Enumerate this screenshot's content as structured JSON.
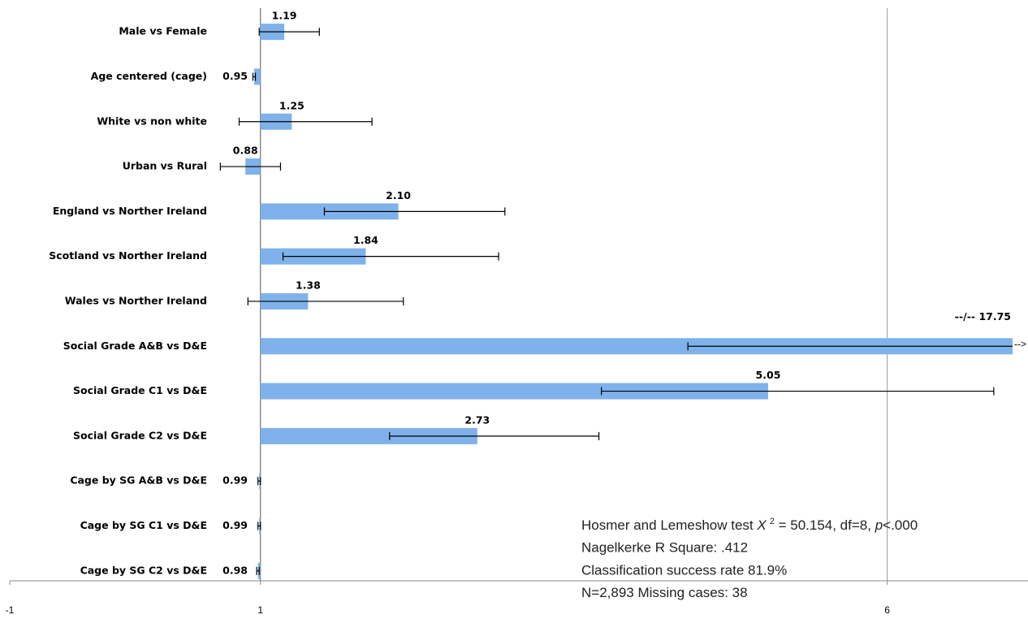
{
  "chart_data": {
    "type": "bar",
    "orientation": "horizontal",
    "categories": [
      "Male vs Female",
      "Age centered (cage)",
      "White vs non white",
      "Urban vs Rural",
      "England vs Norther Ireland",
      "Scotland vs Norther Ireland",
      "Wales vs Norther Ireland",
      "Social Grade A&B vs D&E",
      "Social Grade C1 vs D&E",
      "Social Grade C2 vs D&E",
      "Cage by SG A&B vs D&E",
      "Cage by SG C1 vs D&E",
      "Cage by SG C2 vs D&E"
    ],
    "values": [
      1.19,
      0.95,
      1.25,
      0.88,
      2.1,
      1.84,
      1.38,
      17.75,
      5.05,
      2.73,
      0.99,
      0.99,
      0.98
    ],
    "value_labels": [
      "1.19",
      "0.95",
      "1.25",
      "0.88",
      "2.10",
      "1.84",
      "1.38",
      "--/--  17.75",
      "5.05",
      "2.73",
      "0.99",
      "0.99",
      "0.98"
    ],
    "ci_low": [
      0.99,
      0.94,
      0.83,
      0.68,
      1.51,
      1.18,
      0.9,
      4.41,
      3.72,
      2.03,
      0.98,
      0.98,
      0.97
    ],
    "ci_high": [
      1.47,
      0.96,
      1.89,
      1.16,
      2.95,
      2.9,
      2.14,
      null,
      6.85,
      3.7,
      1.0,
      1.0,
      0.99
    ],
    "overflow_marker": "-->",
    "bar_base": 1,
    "color": "#7fb2ea",
    "xlim": [
      -1,
      7
    ],
    "xticks": [
      -1,
      1,
      6
    ],
    "grid": true,
    "stats": [
      [
        "Hosmer and Lemeshow test ",
        "X",
        "2",
        " = 50.154, df=8, ",
        "p",
        "<.000"
      ],
      [
        "Nagelkerke R Square: .412"
      ],
      [
        "Classification success rate 81.9%"
      ],
      [
        "N=2,893 Missing cases: 38"
      ]
    ]
  }
}
